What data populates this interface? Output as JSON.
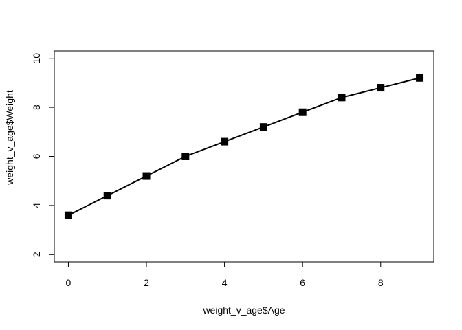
{
  "chart_data": {
    "type": "line",
    "title": "",
    "xlabel": "weight_v_age$Age",
    "ylabel": "weight_v_age$Weight",
    "x": [
      0,
      1,
      2,
      3,
      4,
      5,
      6,
      7,
      8,
      9
    ],
    "y": [
      3.6,
      4.4,
      5.2,
      6.0,
      6.6,
      7.2,
      7.8,
      8.4,
      8.8,
      9.2
    ],
    "xlim": [
      -0.36,
      9.36
    ],
    "ylim": [
      1.7,
      10.3
    ],
    "x_ticks": [
      0,
      2,
      4,
      6,
      8
    ],
    "y_ticks": [
      2,
      4,
      6,
      8,
      10
    ],
    "x_tick_labels": [
      "0",
      "2",
      "4",
      "6",
      "8"
    ],
    "y_tick_labels": [
      "2",
      "4",
      "6",
      "8",
      "10"
    ],
    "marker": "filled-square",
    "line_color": "#000000",
    "grid": false,
    "legend": "none"
  }
}
